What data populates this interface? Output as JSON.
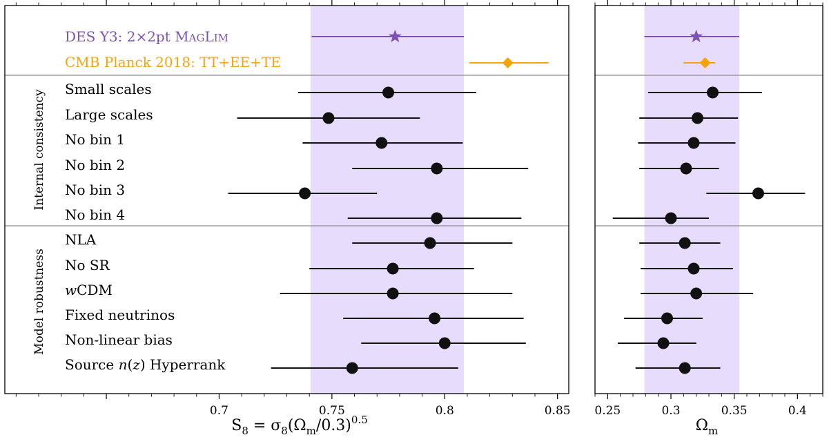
{
  "chart_data": [
    {
      "type": "scatter",
      "panel": "left",
      "xlabel": "S_8 = σ_8(Ω_m/0.3)^0.5",
      "xlim": [
        0.605,
        0.855
      ],
      "xticks": [
        "0.7",
        "0.75",
        "0.8",
        "0.85"
      ],
      "band": [
        0.7405,
        0.8085
      ],
      "references": [
        {
          "name": "DES Y3: 2×2pt MagLim",
          "value": 0.778,
          "err": [
            0.741,
            0.8085
          ],
          "marker": "star",
          "color": "#7b52b2"
        },
        {
          "name": "CMB Planck 2018: TT+EE+TE",
          "value": 0.828,
          "err": [
            0.811,
            0.846
          ],
          "marker": "diamond",
          "color": "#f5a30a"
        }
      ],
      "groups": [
        {
          "label": "Internal consistency",
          "rows": [
            {
              "label": "Small scales",
              "value": 0.775,
              "err": [
                0.735,
                0.814
              ]
            },
            {
              "label": "Large scales",
              "value": 0.7485,
              "err": [
                0.708,
                0.789
              ]
            },
            {
              "label": "No bin 1",
              "value": 0.772,
              "err": [
                0.737,
                0.808
              ]
            },
            {
              "label": "No bin 2",
              "value": 0.7965,
              "err": [
                0.759,
                0.837
              ]
            },
            {
              "label": "No bin 3",
              "value": 0.738,
              "err": [
                0.704,
                0.77
              ]
            },
            {
              "label": "No bin 4",
              "value": 0.7965,
              "err": [
                0.757,
                0.834
              ]
            }
          ]
        },
        {
          "label": "Model robustness",
          "rows": [
            {
              "label": "NLA",
              "value": 0.7935,
              "err": [
                0.759,
                0.83
              ]
            },
            {
              "label": "No SR",
              "value": 0.777,
              "err": [
                0.74,
                0.813
              ]
            },
            {
              "label": "wCDM",
              "value": 0.777,
              "err": [
                0.727,
                0.83
              ]
            },
            {
              "label": "Fixed neutrinos",
              "value": 0.7955,
              "err": [
                0.755,
                0.835
              ]
            },
            {
              "label": "Non-linear bias",
              "value": 0.8,
              "err": [
                0.763,
                0.836
              ]
            },
            {
              "label": "Source n(z) Hyperrank",
              "value": 0.759,
              "err": [
                0.723,
                0.806
              ]
            }
          ]
        }
      ]
    },
    {
      "type": "scatter",
      "panel": "right",
      "xlabel": "Ω_m",
      "xlim": [
        0.24,
        0.42
      ],
      "xticks": [
        "0.25",
        "0.3",
        "0.35",
        "0.4"
      ],
      "band": [
        0.279,
        0.354
      ],
      "references": [
        {
          "name": "DES Y3: 2×2pt MagLim",
          "value": 0.32,
          "err": [
            0.279,
            0.354
          ],
          "marker": "star",
          "color": "#7b52b2"
        },
        {
          "name": "CMB Planck 2018: TT+EE+TE",
          "value": 0.327,
          "err": [
            0.31,
            0.335
          ],
          "marker": "diamond",
          "color": "#f5a30a"
        }
      ],
      "groups": [
        {
          "label": "Internal consistency",
          "rows": [
            {
              "label": "Small scales",
              "value": 0.333,
              "err": [
                0.282,
                0.372
              ]
            },
            {
              "label": "Large scales",
              "value": 0.321,
              "err": [
                0.275,
                0.353
              ]
            },
            {
              "label": "No bin 1",
              "value": 0.318,
              "err": [
                0.274,
                0.351
              ]
            },
            {
              "label": "No bin 2",
              "value": 0.312,
              "err": [
                0.275,
                0.338
              ]
            },
            {
              "label": "No bin 3",
              "value": 0.369,
              "err": [
                0.328,
                0.406
              ]
            },
            {
              "label": "No bin 4",
              "value": 0.3,
              "err": [
                0.254,
                0.33
              ]
            }
          ]
        },
        {
          "label": "Model robustness",
          "rows": [
            {
              "label": "NLA",
              "value": 0.311,
              "err": [
                0.275,
                0.339
              ]
            },
            {
              "label": "No SR",
              "value": 0.318,
              "err": [
                0.276,
                0.349
              ]
            },
            {
              "label": "wCDM",
              "value": 0.32,
              "err": [
                0.276,
                0.365
              ]
            },
            {
              "label": "Fixed neutrinos",
              "value": 0.297,
              "err": [
                0.263,
                0.325
              ]
            },
            {
              "label": "Non-linear bias",
              "value": 0.294,
              "err": [
                0.258,
                0.32
              ]
            },
            {
              "label": "Source n(z) Hyperrank",
              "value": 0.311,
              "err": [
                0.272,
                0.339
              ]
            }
          ]
        }
      ]
    }
  ]
}
